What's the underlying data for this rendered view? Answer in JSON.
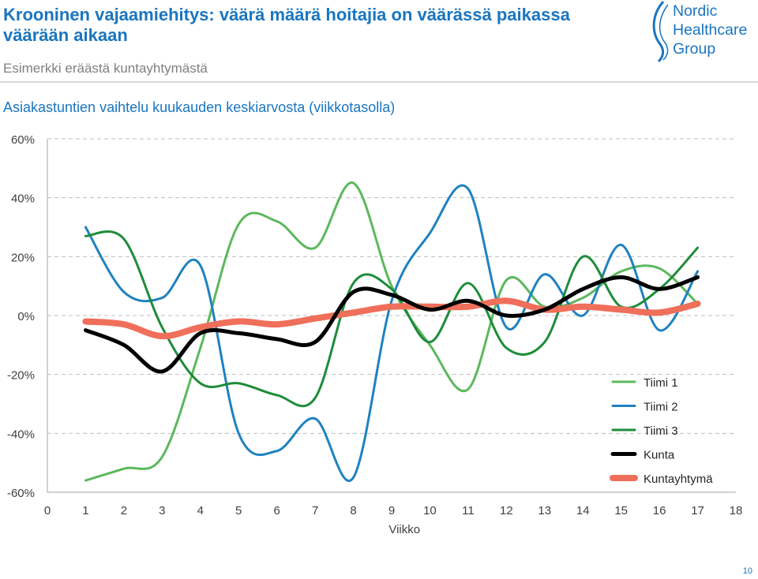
{
  "header": {
    "title": "Krooninen vajaamiehitys: väärä määrä hoitajia on väärässä paikassa väärään aikaan",
    "subtitle": "Esimerkki eräästä kuntayhtymästä"
  },
  "logo": {
    "lines": [
      "Nordic",
      "Healthcare",
      "Group"
    ]
  },
  "page_number": "10",
  "colors": {
    "title": "#1a75c0",
    "tiimi1": "#5cb85c",
    "tiimi2": "#1f82c0",
    "tiimi3": "#1e8c3a",
    "kunta": "#000000",
    "kuntayhtyma": "#ef6f5a"
  },
  "chart_data": {
    "type": "line",
    "title": "Asiakastuntien vaihtelu kuukauden keskiarvosta (viikkotasolla)",
    "xlabel": "Viikko",
    "ylabel": "",
    "x": [
      1,
      2,
      3,
      4,
      5,
      6,
      7,
      8,
      9,
      10,
      11,
      12,
      13,
      14,
      15,
      16,
      17
    ],
    "xlim": [
      0,
      18
    ],
    "ylim": [
      -60,
      60
    ],
    "x_ticks": [
      "0",
      "1",
      "2",
      "3",
      "4",
      "5",
      "6",
      "7",
      "8",
      "9",
      "10",
      "11",
      "12",
      "13",
      "14",
      "15",
      "16",
      "17",
      "18"
    ],
    "y_ticks": [
      "-60%",
      "-40%",
      "-20%",
      "0%",
      "20%",
      "40%",
      "60%"
    ],
    "grid": "horizontal dashed",
    "legend_position": "bottom-right",
    "series": [
      {
        "name": "Tiimi 1",
        "values": [
          -56,
          -52,
          -48,
          -11,
          31,
          32,
          23,
          45,
          10,
          -10,
          -25,
          12,
          3,
          6,
          15,
          16,
          4
        ]
      },
      {
        "name": "Tiimi 2",
        "values": [
          30,
          8,
          6,
          17,
          -40,
          -46,
          -35,
          -55,
          5,
          28,
          43,
          -4,
          14,
          0,
          24,
          -5,
          15
        ]
      },
      {
        "name": "Tiimi 3",
        "values": [
          27,
          26,
          -4,
          -23,
          -23,
          -27,
          -28,
          11,
          9,
          -9,
          11,
          -11,
          -9,
          20,
          3,
          9,
          23
        ]
      },
      {
        "name": "Kunta",
        "values": [
          -5,
          -10,
          -19,
          -6,
          -6,
          -8,
          -9,
          8,
          7,
          2,
          5,
          0,
          2,
          9,
          13,
          9,
          13
        ]
      },
      {
        "name": "Kuntayhtymä",
        "values": [
          -2,
          -3,
          -7,
          -4,
          -2,
          -3,
          -1,
          1,
          3,
          3,
          3,
          5,
          2,
          3,
          2,
          1,
          4
        ]
      }
    ]
  }
}
